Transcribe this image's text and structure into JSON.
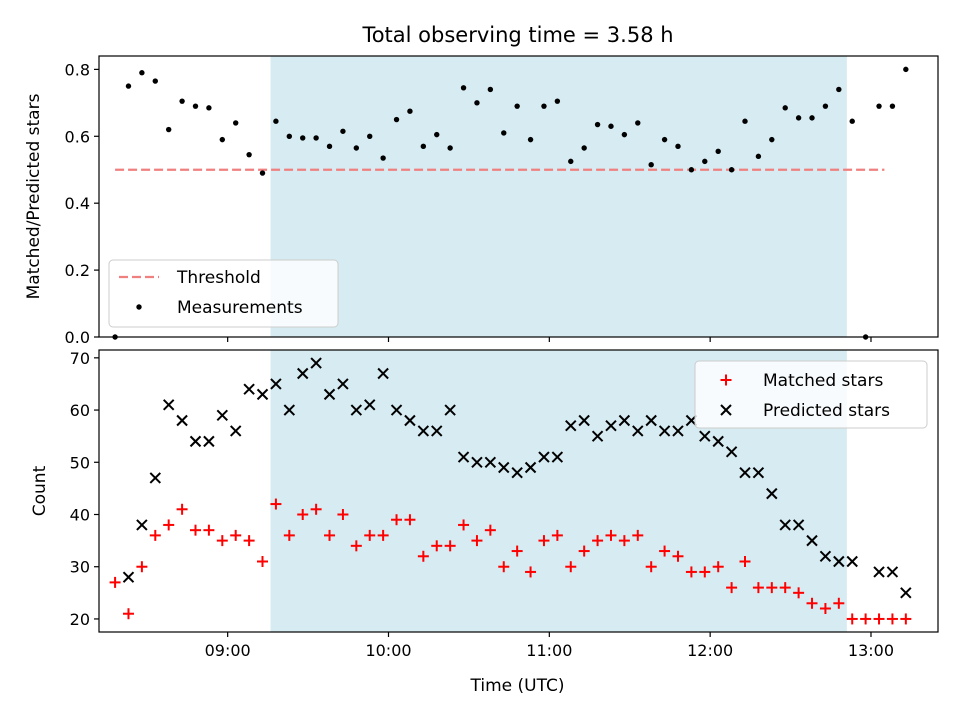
{
  "title": "Total observing time = 3.58 h",
  "chart_data": [
    {
      "type": "scatter",
      "ylabel": "Matched/Predicted stars",
      "xlabel": "",
      "x_unit": "time (UTC)",
      "xlim": [
        "08:12",
        "13:25"
      ],
      "ylim": [
        0,
        0.84
      ],
      "yticks": [
        0.0,
        0.2,
        0.4,
        0.6,
        0.8
      ],
      "ytick_labels": [
        "0.0",
        "0.2",
        "0.4",
        "0.6",
        "0.8"
      ],
      "observing_window": [
        "09:16",
        "12:51"
      ],
      "legend_position": "lower-left",
      "threshold": {
        "name": "Threshold",
        "value": 0.5,
        "x_range": [
          "08:18",
          "13:05"
        ],
        "color": "#f08080"
      },
      "series": [
        {
          "name": "Measurements",
          "color": "#000000",
          "points": [
            [
              "08:18",
              0.0
            ],
            [
              "08:23",
              0.75
            ],
            [
              "08:28",
              0.79
            ],
            [
              "08:33",
              0.765
            ],
            [
              "08:38",
              0.62
            ],
            [
              "08:43",
              0.705
            ],
            [
              "08:48",
              0.69
            ],
            [
              "08:53",
              0.685
            ],
            [
              "08:58",
              0.59
            ],
            [
              "09:03",
              0.64
            ],
            [
              "09:08",
              0.545
            ],
            [
              "09:13",
              0.49
            ],
            [
              "09:18",
              0.645
            ],
            [
              "09:23",
              0.6
            ],
            [
              "09:28",
              0.595
            ],
            [
              "09:33",
              0.595
            ],
            [
              "09:38",
              0.57
            ],
            [
              "09:43",
              0.615
            ],
            [
              "09:48",
              0.565
            ],
            [
              "09:53",
              0.6
            ],
            [
              "09:58",
              0.535
            ],
            [
              "10:03",
              0.65
            ],
            [
              "10:08",
              0.675
            ],
            [
              "10:13",
              0.57
            ],
            [
              "10:18",
              0.605
            ],
            [
              "10:23",
              0.565
            ],
            [
              "10:28",
              0.745
            ],
            [
              "10:33",
              0.7
            ],
            [
              "10:38",
              0.74
            ],
            [
              "10:43",
              0.61
            ],
            [
              "10:48",
              0.69
            ],
            [
              "10:53",
              0.59
            ],
            [
              "10:58",
              0.69
            ],
            [
              "11:03",
              0.705
            ],
            [
              "11:08",
              0.525
            ],
            [
              "11:13",
              0.565
            ],
            [
              "11:18",
              0.635
            ],
            [
              "11:23",
              0.63
            ],
            [
              "11:28",
              0.605
            ],
            [
              "11:33",
              0.64
            ],
            [
              "11:38",
              0.515
            ],
            [
              "11:43",
              0.59
            ],
            [
              "11:48",
              0.57
            ],
            [
              "11:53",
              0.5
            ],
            [
              "11:58",
              0.525
            ],
            [
              "12:03",
              0.555
            ],
            [
              "12:08",
              0.5
            ],
            [
              "12:13",
              0.645
            ],
            [
              "12:18",
              0.54
            ],
            [
              "12:23",
              0.59
            ],
            [
              "12:28",
              0.685
            ],
            [
              "12:33",
              0.655
            ],
            [
              "12:38",
              0.655
            ],
            [
              "12:43",
              0.69
            ],
            [
              "12:48",
              0.74
            ],
            [
              "12:53",
              0.645
            ],
            [
              "12:58",
              0.0
            ],
            [
              "13:03",
              0.69
            ],
            [
              "13:08",
              0.69
            ],
            [
              "13:13",
              0.8
            ]
          ]
        }
      ]
    },
    {
      "type": "scatter",
      "xlabel": "Time (UTC)",
      "ylabel": "Count",
      "xlim": [
        "08:12",
        "13:25"
      ],
      "ylim": [
        17.5,
        71.5
      ],
      "yticks": [
        20,
        30,
        40,
        50,
        60,
        70
      ],
      "ytick_labels": [
        "20",
        "30",
        "40",
        "50",
        "60",
        "70"
      ],
      "xticks": [
        "09:00",
        "10:00",
        "11:00",
        "12:00",
        "13:00"
      ],
      "xtick_labels": [
        "09:00",
        "10:00",
        "11:00",
        "12:00",
        "13:00"
      ],
      "observing_window": [
        "09:16",
        "12:51"
      ],
      "legend_position": "top-right",
      "series": [
        {
          "name": "Matched stars",
          "marker": "plus",
          "color": "#ff0000",
          "points": [
            [
              "08:18",
              27
            ],
            [
              "08:23",
              21
            ],
            [
              "08:28",
              30
            ],
            [
              "08:33",
              36
            ],
            [
              "08:38",
              38
            ],
            [
              "08:43",
              41
            ],
            [
              "08:48",
              37
            ],
            [
              "08:53",
              37
            ],
            [
              "08:58",
              35
            ],
            [
              "09:03",
              36
            ],
            [
              "09:08",
              35
            ],
            [
              "09:13",
              31
            ],
            [
              "09:18",
              42
            ],
            [
              "09:23",
              36
            ],
            [
              "09:28",
              40
            ],
            [
              "09:33",
              41
            ],
            [
              "09:38",
              36
            ],
            [
              "09:43",
              40
            ],
            [
              "09:48",
              34
            ],
            [
              "09:53",
              36
            ],
            [
              "09:58",
              36
            ],
            [
              "10:03",
              39
            ],
            [
              "10:08",
              39
            ],
            [
              "10:13",
              32
            ],
            [
              "10:18",
              34
            ],
            [
              "10:23",
              34
            ],
            [
              "10:28",
              38
            ],
            [
              "10:33",
              35
            ],
            [
              "10:38",
              37
            ],
            [
              "10:43",
              30
            ],
            [
              "10:48",
              33
            ],
            [
              "10:53",
              29
            ],
            [
              "10:58",
              35
            ],
            [
              "11:03",
              36
            ],
            [
              "11:08",
              30
            ],
            [
              "11:13",
              33
            ],
            [
              "11:18",
              35
            ],
            [
              "11:23",
              36
            ],
            [
              "11:28",
              35
            ],
            [
              "11:33",
              36
            ],
            [
              "11:38",
              30
            ],
            [
              "11:43",
              33
            ],
            [
              "11:48",
              32
            ],
            [
              "11:53",
              29
            ],
            [
              "11:58",
              29
            ],
            [
              "12:03",
              30
            ],
            [
              "12:08",
              26
            ],
            [
              "12:13",
              31
            ],
            [
              "12:18",
              26
            ],
            [
              "12:23",
              26
            ],
            [
              "12:28",
              26
            ],
            [
              "12:33",
              25
            ],
            [
              "12:38",
              23
            ],
            [
              "12:43",
              22
            ],
            [
              "12:48",
              23
            ],
            [
              "12:53",
              20
            ],
            [
              "12:58",
              20
            ],
            [
              "13:03",
              20
            ],
            [
              "13:08",
              20
            ],
            [
              "13:13",
              20
            ]
          ]
        },
        {
          "name": "Predicted stars",
          "marker": "x",
          "color": "#000000",
          "points": [
            [
              "08:23",
              28
            ],
            [
              "08:28",
              38
            ],
            [
              "08:33",
              47
            ],
            [
              "08:38",
              61
            ],
            [
              "08:43",
              58
            ],
            [
              "08:48",
              54
            ],
            [
              "08:53",
              54
            ],
            [
              "08:58",
              59
            ],
            [
              "09:03",
              56
            ],
            [
              "09:08",
              64
            ],
            [
              "09:13",
              63
            ],
            [
              "09:18",
              65
            ],
            [
              "09:23",
              60
            ],
            [
              "09:28",
              67
            ],
            [
              "09:33",
              69
            ],
            [
              "09:38",
              63
            ],
            [
              "09:43",
              65
            ],
            [
              "09:48",
              60
            ],
            [
              "09:53",
              61
            ],
            [
              "09:58",
              67
            ],
            [
              "10:03",
              60
            ],
            [
              "10:08",
              58
            ],
            [
              "10:13",
              56
            ],
            [
              "10:18",
              56
            ],
            [
              "10:23",
              60
            ],
            [
              "10:28",
              51
            ],
            [
              "10:33",
              50
            ],
            [
              "10:38",
              50
            ],
            [
              "10:43",
              49
            ],
            [
              "10:48",
              48
            ],
            [
              "10:53",
              49
            ],
            [
              "10:58",
              51
            ],
            [
              "11:03",
              51
            ],
            [
              "11:08",
              57
            ],
            [
              "11:13",
              58
            ],
            [
              "11:18",
              55
            ],
            [
              "11:23",
              57
            ],
            [
              "11:28",
              58
            ],
            [
              "11:33",
              56
            ],
            [
              "11:38",
              58
            ],
            [
              "11:43",
              56
            ],
            [
              "11:48",
              56
            ],
            [
              "11:53",
              58
            ],
            [
              "11:58",
              55
            ],
            [
              "12:03",
              54
            ],
            [
              "12:08",
              52
            ],
            [
              "12:13",
              48
            ],
            [
              "12:18",
              48
            ],
            [
              "12:23",
              44
            ],
            [
              "12:28",
              38
            ],
            [
              "12:33",
              38
            ],
            [
              "12:38",
              35
            ],
            [
              "12:43",
              32
            ],
            [
              "12:48",
              31
            ],
            [
              "12:53",
              31
            ],
            [
              "13:03",
              29
            ],
            [
              "13:08",
              29
            ],
            [
              "13:13",
              25
            ]
          ]
        }
      ]
    }
  ]
}
